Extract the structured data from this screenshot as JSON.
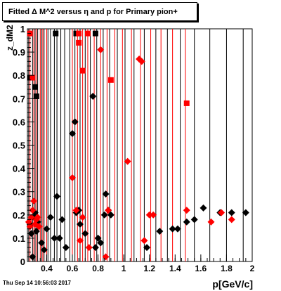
{
  "title": "Fitted Δ M^2 versus η and p for Primary pion+",
  "timestamp": "Thu Sep 14 10:56:03 2017",
  "chart_data": {
    "type": "scatter",
    "title": "Fitted Δ M^2 versus η and p for Primary pion+",
    "xlabel": "p[GeV/c]",
    "ylabel": "z_dM2",
    "xlim": [
      0.25,
      2.0
    ],
    "ylim": [
      0,
      1.0
    ],
    "x_ticks": [
      0.4,
      0.6,
      0.8,
      1.0,
      1.2,
      1.4,
      1.6,
      1.8,
      2.0
    ],
    "x_tick_labels": [
      "0.4",
      "0.6",
      "0.8",
      "1",
      "1.2",
      "1.4",
      "1.6",
      "1.8",
      "2"
    ],
    "y_ticks": [
      0,
      0.1,
      0.2,
      0.3,
      0.4,
      0.5,
      0.6,
      0.7,
      0.8,
      0.9,
      1.0
    ],
    "y_tick_labels": [
      "0",
      "0.1",
      "0.2",
      "0.3",
      "0.4",
      "0.5",
      "0.6",
      "0.7",
      "0.8",
      "0.9",
      "1"
    ],
    "colors": {
      "black": "#000000",
      "red": "#ff0000"
    },
    "series": [
      {
        "color": "black",
        "marker": "square",
        "points": [
          [
            0.47,
            0.98
          ],
          [
            0.63,
            0.98
          ],
          [
            0.78,
            0.98
          ],
          [
            0.32,
            0.71
          ],
          [
            0.27,
            0.79
          ],
          [
            0.31,
            0.75
          ]
        ]
      },
      {
        "color": "red",
        "marker": "square",
        "points": [
          [
            0.27,
            0.98
          ],
          [
            0.65,
            0.98
          ],
          [
            0.72,
            0.98
          ],
          [
            0.29,
            0.79
          ],
          [
            0.65,
            0.94
          ],
          [
            0.68,
            0.82
          ],
          [
            0.9,
            0.78
          ],
          [
            1.49,
            0.68
          ]
        ]
      },
      {
        "color": "black",
        "marker": "diamond",
        "points": [
          [
            0.27,
            0.16
          ],
          [
            0.28,
            0.12
          ],
          [
            0.29,
            0.02
          ],
          [
            0.3,
            0.19
          ],
          [
            0.31,
            0.21
          ],
          [
            0.32,
            0.13
          ],
          [
            0.33,
            0.17
          ],
          [
            0.36,
            0.08
          ],
          [
            0.38,
            0.05
          ],
          [
            0.4,
            0.14
          ],
          [
            0.43,
            0.19
          ],
          [
            0.46,
            0.1
          ],
          [
            0.48,
            0.28
          ],
          [
            0.5,
            0.1
          ],
          [
            0.52,
            0.18
          ],
          [
            0.55,
            0.06
          ],
          [
            0.6,
            0.55
          ],
          [
            0.62,
            0.6
          ],
          [
            0.63,
            0.21
          ],
          [
            0.65,
            0.22
          ],
          [
            0.66,
            0.16
          ],
          [
            0.7,
            0.12
          ],
          [
            0.76,
            0.71
          ],
          [
            0.78,
            0.06
          ],
          [
            0.8,
            0.1
          ],
          [
            0.82,
            0.08
          ],
          [
            0.85,
            0.2
          ],
          [
            0.86,
            0.29
          ],
          [
            0.88,
            0.22
          ],
          [
            0.9,
            0.2
          ],
          [
            1.18,
            0.06
          ],
          [
            1.28,
            0.13
          ],
          [
            1.38,
            0.14
          ],
          [
            1.42,
            0.14
          ],
          [
            1.49,
            0.17
          ],
          [
            1.55,
            0.18
          ],
          [
            1.62,
            0.23
          ],
          [
            1.75,
            0.21
          ],
          [
            1.84,
            0.21
          ],
          [
            1.95,
            0.21
          ]
        ]
      },
      {
        "color": "red",
        "marker": "diamond",
        "points": [
          [
            0.26,
            0.17
          ],
          [
            0.27,
            0.15
          ],
          [
            0.28,
            0.19
          ],
          [
            0.29,
            0.22
          ],
          [
            0.3,
            0.26
          ],
          [
            0.31,
            0.16
          ],
          [
            0.32,
            0.18
          ],
          [
            0.33,
            0.19
          ],
          [
            0.34,
            0.15
          ],
          [
            0.6,
            0.36
          ],
          [
            0.63,
            0.22
          ],
          [
            0.66,
            0.09
          ],
          [
            0.68,
            0.19
          ],
          [
            0.73,
            0.06
          ],
          [
            0.82,
            0.91
          ],
          [
            0.86,
            0.02
          ],
          [
            0.88,
            0.22
          ],
          [
            1.03,
            0.43
          ],
          [
            1.12,
            0.87
          ],
          [
            1.14,
            0.86
          ],
          [
            1.16,
            0.09
          ],
          [
            1.2,
            0.2
          ],
          [
            1.23,
            0.2
          ],
          [
            1.49,
            0.22
          ],
          [
            1.68,
            0.17
          ],
          [
            1.76,
            0.21
          ],
          [
            1.84,
            0.18
          ]
        ]
      }
    ],
    "vertical_lines": {
      "black": [
        0.26,
        0.29,
        0.31,
        0.33,
        0.36,
        0.38,
        0.41,
        0.43,
        0.46,
        0.48,
        0.51,
        0.54,
        0.58,
        0.62,
        0.66,
        0.7,
        0.74,
        0.79,
        0.84,
        0.89,
        0.95,
        1.01,
        1.08,
        1.16,
        1.25,
        1.34,
        1.44,
        1.55,
        1.67,
        1.8,
        1.93
      ],
      "red": [
        0.27,
        0.3,
        0.32,
        0.35,
        0.37,
        0.4,
        0.6,
        0.64,
        0.68,
        0.72,
        0.77,
        0.82,
        0.87,
        0.93,
        0.99,
        1.06,
        1.13,
        1.21,
        1.29,
        1.38,
        1.48
      ]
    }
  }
}
